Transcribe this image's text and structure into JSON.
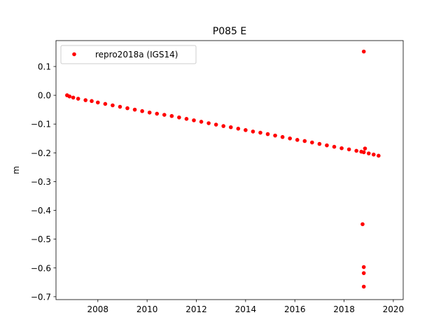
{
  "chart_data": {
    "type": "scatter",
    "title": "P085 E",
    "xlabel": "",
    "ylabel": "m",
    "xlim": [
      2006.3,
      2020.4
    ],
    "ylim": [
      -0.71,
      0.19
    ],
    "xticks": [
      2008,
      2010,
      2012,
      2014,
      2016,
      2018,
      2020
    ],
    "xtick_labels": [
      "2008",
      "2010",
      "2012",
      "2014",
      "2016",
      "2018",
      "2020"
    ],
    "yticks": [
      0.1,
      0.0,
      -0.1,
      -0.2,
      -0.3,
      -0.4,
      -0.5,
      -0.6,
      -0.7
    ],
    "ytick_labels": [
      "0.1",
      "0.0",
      "−0.1",
      "−0.2",
      "−0.3",
      "−0.4",
      "−0.5",
      "−0.6",
      "−0.7"
    ],
    "grid": false,
    "legend_position": "top-left",
    "series": [
      {
        "name": "repro2018a (IGS14)",
        "color": "#ff0000",
        "marker": "circle",
        "x": [
          2006.75,
          2006.85,
          2007.0,
          2007.2,
          2007.5,
          2007.75,
          2008.0,
          2008.3,
          2008.6,
          2008.9,
          2009.2,
          2009.5,
          2009.8,
          2010.1,
          2010.4,
          2010.7,
          2011.0,
          2011.3,
          2011.6,
          2011.9,
          2012.2,
          2012.5,
          2012.8,
          2013.1,
          2013.4,
          2013.7,
          2014.0,
          2014.3,
          2014.6,
          2014.9,
          2015.2,
          2015.5,
          2015.8,
          2016.1,
          2016.4,
          2016.7,
          2017.0,
          2017.3,
          2017.6,
          2017.9,
          2018.2,
          2018.5,
          2018.7,
          2018.8,
          2018.85,
          2019.0,
          2019.2,
          2019.4,
          2018.8,
          2018.75,
          2018.8,
          2018.8,
          2018.8
        ],
        "y": [
          0.0,
          -0.004,
          -0.008,
          -0.012,
          -0.017,
          -0.02,
          -0.025,
          -0.03,
          -0.035,
          -0.04,
          -0.045,
          -0.05,
          -0.055,
          -0.06,
          -0.064,
          -0.068,
          -0.072,
          -0.077,
          -0.082,
          -0.087,
          -0.092,
          -0.097,
          -0.102,
          -0.107,
          -0.111,
          -0.116,
          -0.121,
          -0.126,
          -0.13,
          -0.135,
          -0.14,
          -0.145,
          -0.15,
          -0.155,
          -0.159,
          -0.164,
          -0.169,
          -0.174,
          -0.179,
          -0.184,
          -0.188,
          -0.193,
          -0.196,
          -0.198,
          -0.185,
          -0.202,
          -0.206,
          -0.21,
          0.152,
          -0.448,
          -0.597,
          -0.618,
          -0.665
        ]
      }
    ]
  }
}
